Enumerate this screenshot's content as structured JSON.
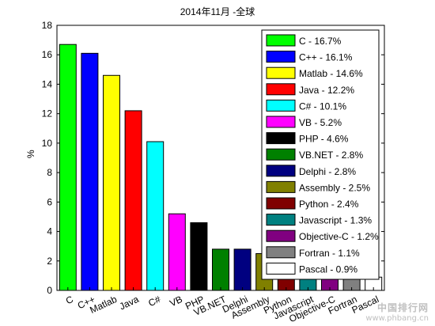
{
  "chart_data": {
    "type": "bar",
    "title": "2014年11月 -全球",
    "xlabel": "",
    "ylabel": "%",
    "ylim": [
      0,
      18
    ],
    "yticks": [
      0,
      2,
      4,
      6,
      8,
      10,
      12,
      14,
      16,
      18
    ],
    "grid": false,
    "legend_position": "top-right",
    "categories": [
      "C",
      "C++",
      "Matlab",
      "Java",
      "C#",
      "VB",
      "PHP",
      "VB.NET",
      "Delphi",
      "Assembly",
      "Python",
      "Javascript",
      "Objective-C",
      "Fortran",
      "Pascal"
    ],
    "values": [
      16.7,
      16.1,
      14.6,
      12.2,
      10.1,
      5.2,
      4.6,
      2.8,
      2.8,
      2.5,
      2.4,
      1.3,
      1.2,
      1.1,
      0.9
    ],
    "colors": [
      "#00ff00",
      "#0000ff",
      "#ffff00",
      "#ff0000",
      "#00ffff",
      "#ff00ff",
      "#000000",
      "#008000",
      "#000080",
      "#808000",
      "#800000",
      "#008080",
      "#800080",
      "#808080",
      "#ffffff"
    ],
    "legend_labels": [
      "C - 16.7%",
      "C++ - 16.1%",
      "Matlab - 14.6%",
      "Java - 12.2%",
      "C# - 10.1%",
      "VB - 5.2%",
      "PHP - 4.6%",
      "VB.NET - 2.8%",
      "Delphi - 2.8%",
      "Assembly - 2.5%",
      "Python - 2.4%",
      "Javascript - 1.3%",
      "Objective-C - 1.2%",
      "Fortran - 1.1%",
      "Pascal - 0.9%"
    ]
  },
  "watermark": {
    "site_name": "中国排行网",
    "url": "www.phbang.cn"
  }
}
